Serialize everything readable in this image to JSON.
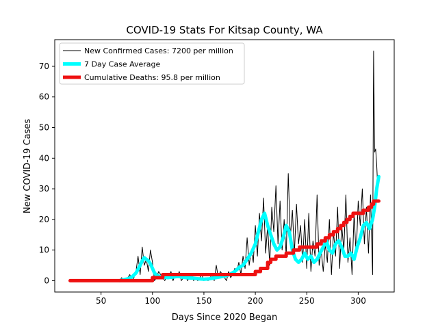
{
  "chart_data": {
    "type": "line",
    "title": "COVID-19 Stats For Kitsap County, WA",
    "xlabel": "Days Since 2020 Began",
    "ylabel": "New COVID-19 Cases",
    "xlim": [
      5,
      335
    ],
    "ylim": [
      -3.7,
      78.7
    ],
    "xticks": [
      50,
      100,
      150,
      200,
      250,
      300
    ],
    "yticks": [
      0,
      10,
      20,
      30,
      40,
      50,
      60,
      70
    ],
    "grid": false,
    "legend_position": "upper-left",
    "series": [
      {
        "name": "New Confirmed Cases: 7200 per million",
        "color": "#000000",
        "x": [
          20,
          68,
          70,
          72,
          74,
          76,
          78,
          80,
          82,
          84,
          86,
          88,
          90,
          92,
          94,
          96,
          98,
          100,
          102,
          104,
          106,
          108,
          110,
          112,
          114,
          116,
          118,
          120,
          122,
          124,
          126,
          128,
          130,
          132,
          134,
          136,
          138,
          140,
          142,
          144,
          146,
          148,
          150,
          152,
          154,
          156,
          158,
          160,
          162,
          164,
          166,
          168,
          170,
          172,
          174,
          176,
          178,
          180,
          182,
          184,
          186,
          188,
          190,
          192,
          194,
          196,
          198,
          200,
          202,
          204,
          206,
          208,
          210,
          212,
          214,
          216,
          218,
          220,
          222,
          224,
          226,
          228,
          230,
          232,
          234,
          236,
          238,
          240,
          242,
          244,
          246,
          248,
          250,
          252,
          254,
          256,
          258,
          260,
          262,
          264,
          266,
          268,
          270,
          272,
          274,
          276,
          278,
          280,
          282,
          284,
          286,
          288,
          290,
          292,
          294,
          296,
          298,
          300,
          302,
          304,
          306,
          308,
          310,
          312,
          314,
          315,
          316,
          317,
          318,
          319,
          320
        ],
        "y": [
          0,
          0,
          1,
          0,
          0,
          1,
          2,
          0,
          1,
          3,
          8,
          2,
          11,
          5,
          7,
          3,
          10,
          6,
          0,
          1,
          3,
          2,
          1,
          0,
          2,
          1,
          3,
          0,
          2,
          1,
          3,
          0,
          1,
          2,
          0,
          1,
          2,
          0,
          1,
          0,
          1,
          2,
          0,
          1,
          0,
          1,
          2,
          0,
          5,
          1,
          3,
          2,
          1,
          0,
          3,
          1,
          2,
          4,
          3,
          6,
          2,
          8,
          4,
          14,
          5,
          10,
          6,
          18,
          8,
          22,
          13,
          27,
          9,
          18,
          5,
          24,
          16,
          31,
          12,
          26,
          10,
          20,
          8,
          35,
          14,
          23,
          9,
          25,
          12,
          18,
          6,
          20,
          4,
          22,
          3,
          13,
          8,
          28,
          5,
          10,
          3,
          12,
          6,
          20,
          2,
          16,
          8,
          24,
          4,
          18,
          10,
          28,
          6,
          14,
          2,
          22,
          8,
          26,
          18,
          30,
          12,
          24,
          9,
          28,
          2,
          75,
          42,
          43,
          38,
          30,
          34
        ]
      },
      {
        "name": "7 Day Case Average",
        "color": "#00ffff",
        "x": [
          68,
          72,
          76,
          80,
          84,
          88,
          90,
          92,
          94,
          96,
          98,
          100,
          102,
          104,
          106,
          110,
          115,
          120,
          125,
          130,
          135,
          140,
          145,
          150,
          155,
          160,
          165,
          170,
          175,
          180,
          185,
          188,
          192,
          196,
          200,
          203,
          206,
          209,
          212,
          215,
          218,
          221,
          224,
          227,
          230,
          233,
          236,
          239,
          242,
          245,
          248,
          251,
          254,
          257,
          260,
          263,
          266,
          269,
          272,
          275,
          278,
          281,
          284,
          287,
          290,
          293,
          296,
          299,
          302,
          305,
          308,
          311,
          314,
          316,
          318,
          320
        ],
        "y": [
          0,
          0.3,
          0.6,
          1.2,
          2.5,
          5,
          6.5,
          7.5,
          7,
          6.5,
          5.5,
          4,
          2.5,
          1.8,
          1.5,
          1.2,
          1,
          1.2,
          1.4,
          1.1,
          0.9,
          0.8,
          0.6,
          0.5,
          0.6,
          0.9,
          1.2,
          1.5,
          2,
          3,
          4.5,
          5,
          7,
          9,
          12,
          16,
          20,
          22,
          18,
          15,
          12,
          10,
          11,
          14,
          18,
          16,
          10,
          7,
          6,
          7,
          9,
          7,
          8,
          6,
          7,
          9,
          11,
          13,
          10,
          9,
          12,
          13,
          11,
          8,
          8,
          9,
          7,
          11,
          14,
          18,
          19,
          17,
          20,
          24,
          30,
          34
        ]
      },
      {
        "name": "Cumulative Deaths: 95.8 per million",
        "color": "#ee1111",
        "x": [
          20,
          100,
          100,
          110,
          110,
          200,
          200,
          205,
          205,
          212,
          212,
          215,
          215,
          220,
          220,
          230,
          230,
          237,
          237,
          243,
          243,
          260,
          260,
          264,
          264,
          268,
          268,
          272,
          272,
          276,
          276,
          280,
          280,
          283,
          283,
          286,
          286,
          289,
          289,
          292,
          292,
          295,
          295,
          300,
          300,
          305,
          305,
          310,
          310,
          313,
          313,
          315,
          315,
          317,
          317,
          320
        ],
        "y": [
          0,
          0,
          1,
          1,
          2,
          2,
          3,
          3,
          4,
          4,
          6,
          6,
          7,
          7,
          8,
          8,
          9,
          9,
          10,
          10,
          11,
          11,
          12,
          12,
          13,
          13,
          14,
          14,
          15,
          15,
          16,
          16,
          17,
          17,
          18,
          18,
          19,
          19,
          20,
          20,
          21,
          21,
          22,
          22,
          22,
          22,
          23,
          23,
          24,
          24,
          25,
          25,
          26,
          26,
          26,
          26
        ]
      }
    ]
  }
}
